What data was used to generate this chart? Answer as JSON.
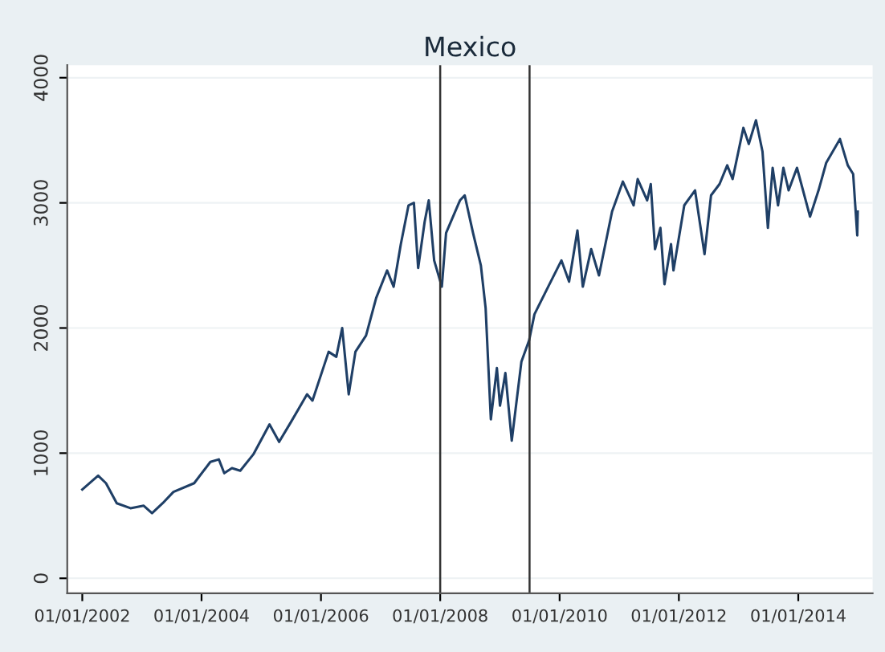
{
  "chart_data": {
    "type": "line",
    "title": "Mexico",
    "x": [
      "2002-01-01",
      "2002-04-08",
      "2002-05-26",
      "2002-07-31",
      "2002-10-23",
      "2003-01-12",
      "2003-03-04",
      "2003-05-08",
      "2003-07-13",
      "2003-11-17",
      "2004-02-24",
      "2004-04-16",
      "2004-05-19",
      "2004-07-05",
      "2004-08-25",
      "2004-11-13",
      "2005-02-20",
      "2005-04-20",
      "2005-07-02",
      "2005-10-08",
      "2005-11-10",
      "2006-01-15",
      "2006-02-17",
      "2006-04-05",
      "2006-05-11",
      "2006-06-20",
      "2006-07-31",
      "2006-10-04",
      "2006-12-05",
      "2007-02-10",
      "2007-03-22",
      "2007-05-05",
      "2007-06-21",
      "2007-07-24",
      "2007-08-19",
      "2007-09-28",
      "2007-10-23",
      "2007-11-25",
      "2008-01-11",
      "2008-02-06",
      "2008-05-01",
      "2008-05-30",
      "2008-07-20",
      "2008-09-06",
      "2008-10-05",
      "2008-10-19",
      "2008-11-06",
      "2008-12-13",
      "2009-01-01",
      "2009-02-03",
      "2009-03-14",
      "2009-05-12",
      "2009-06-28",
      "2009-07-31",
      "2009-10-23",
      "2010-01-12",
      "2010-02-28",
      "2010-04-20",
      "2010-05-23",
      "2010-07-13",
      "2010-08-30",
      "2010-11-18",
      "2011-01-23",
      "2011-03-30",
      "2011-04-24",
      "2011-06-21",
      "2011-07-13",
      "2011-08-08",
      "2011-09-10",
      "2011-10-05",
      "2011-11-14",
      "2011-11-29",
      "2012-02-03",
      "2012-04-09",
      "2012-06-06",
      "2012-07-16",
      "2012-09-06",
      "2012-10-23",
      "2012-11-25",
      "2013-01-30",
      "2013-03-04",
      "2013-04-17",
      "2013-05-27",
      "2013-06-29",
      "2013-07-28",
      "2013-08-30",
      "2013-10-02",
      "2013-11-03",
      "2013-12-24",
      "2014-03-14",
      "2014-05-05",
      "2014-06-21",
      "2014-09-13",
      "2014-10-31",
      "2014-12-03",
      "2014-12-28",
      "2014-12-31"
    ],
    "series": [
      {
        "color": "#1f3f66",
        "values": [
          710,
          820,
          760,
          600,
          560,
          580,
          520,
          600,
          690,
          760,
          930,
          950,
          840,
          880,
          860,
          990,
          1230,
          1090,
          1250,
          1470,
          1420,
          1680,
          1810,
          1770,
          2000,
          1470,
          1810,
          1940,
          2240,
          2460,
          2330,
          2670,
          2980,
          3000,
          2480,
          2850,
          3020,
          2540,
          2330,
          2760,
          3020,
          3060,
          2760,
          2500,
          2160,
          1770,
          1270,
          1680,
          1380,
          1640,
          1100,
          1730,
          1900,
          2110,
          2330,
          2540,
          2370,
          2780,
          2330,
          2630,
          2420,
          2930,
          3170,
          2980,
          3190,
          3020,
          3150,
          2630,
          2800,
          2350,
          2670,
          2460,
          2980,
          3100,
          2590,
          3060,
          3150,
          3300,
          3190,
          3600,
          3470,
          3660,
          3410,
          2800,
          3280,
          2980,
          3280,
          3100,
          3280,
          2890,
          3100,
          3320,
          3510,
          3300,
          3230,
          2740,
          2930
        ]
      }
    ],
    "xlim": [
      "2001-10-01",
      "2015-04-01"
    ],
    "xticks": [
      {
        "value": "2002-01-01",
        "label": "01/01/2002"
      },
      {
        "value": "2004-01-01",
        "label": "01/01/2004"
      },
      {
        "value": "2006-01-01",
        "label": "01/01/2006"
      },
      {
        "value": "2008-01-01",
        "label": "01/01/2008"
      },
      {
        "value": "2010-01-01",
        "label": "01/01/2010"
      },
      {
        "value": "2012-01-01",
        "label": "01/01/2012"
      },
      {
        "value": "2014-01-01",
        "label": "01/01/2014"
      }
    ],
    "ylim": [
      -120,
      4100
    ],
    "yticks": [
      0,
      1000,
      2000,
      3000,
      4000
    ],
    "ref_lines": [
      {
        "axis": "x",
        "value": "2008-01-01",
        "color": "#333333"
      },
      {
        "axis": "x",
        "value": "2009-07-01",
        "color": "#333333"
      }
    ],
    "grid": "y",
    "legend": false,
    "line_style": "solid",
    "marker": "none"
  }
}
